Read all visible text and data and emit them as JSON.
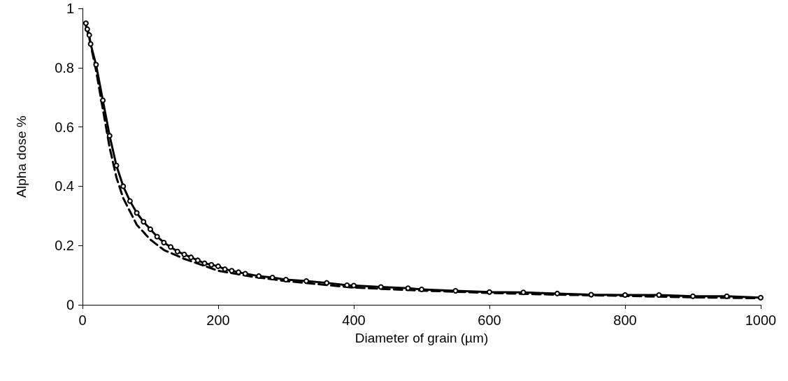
{
  "chart_data": {
    "type": "line",
    "xlabel": "Diameter of grain (µm)",
    "ylabel": "Alpha dose %",
    "xlim": [
      0,
      1000
    ],
    "xticks": [
      0,
      200,
      400,
      600,
      800,
      1000
    ],
    "ylim": [
      0,
      1
    ],
    "yticks": [
      0,
      0.2,
      0.4,
      0.6,
      0.8,
      1
    ],
    "grid": false,
    "series": [
      {
        "color": "#000000",
        "marker": "circle",
        "line_style": "solid",
        "x": [
          5,
          7,
          10,
          12,
          20,
          30,
          40,
          50,
          60,
          70,
          80,
          90,
          100,
          110,
          120,
          130,
          140,
          150,
          160,
          170,
          180,
          190,
          200,
          210,
          220,
          230,
          240,
          260,
          280,
          300,
          330,
          360,
          390,
          400,
          440,
          480,
          500,
          550,
          600,
          650,
          700,
          750,
          800,
          850,
          900,
          950,
          1000
        ],
        "values": [
          0.95,
          0.93,
          0.91,
          0.88,
          0.81,
          0.69,
          0.57,
          0.47,
          0.4,
          0.35,
          0.31,
          0.28,
          0.255,
          0.23,
          0.21,
          0.195,
          0.18,
          0.17,
          0.16,
          0.15,
          0.14,
          0.135,
          0.13,
          0.12,
          0.115,
          0.11,
          0.105,
          0.097,
          0.092,
          0.085,
          0.08,
          0.074,
          0.066,
          0.065,
          0.06,
          0.056,
          0.052,
          0.047,
          0.043,
          0.042,
          0.038,
          0.034,
          0.033,
          0.033,
          0.029,
          0.029,
          0.024
        ]
      },
      {
        "color": "#000000",
        "marker": "none",
        "line_style": "dashed",
        "x": [
          5,
          10,
          20,
          30,
          40,
          50,
          60,
          80,
          100,
          120,
          150,
          200,
          250,
          300,
          400,
          500,
          600,
          700,
          800,
          900,
          1000
        ],
        "values": [
          0.94,
          0.9,
          0.79,
          0.66,
          0.53,
          0.43,
          0.36,
          0.27,
          0.22,
          0.185,
          0.155,
          0.115,
          0.095,
          0.08,
          0.058,
          0.048,
          0.04,
          0.034,
          0.03,
          0.025,
          0.022
        ]
      }
    ]
  }
}
